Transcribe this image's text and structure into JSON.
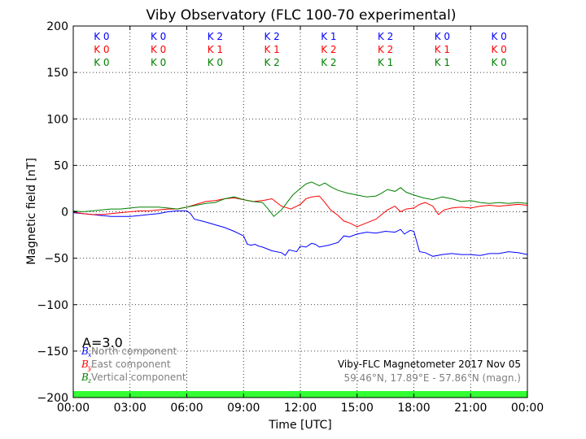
{
  "chart_data": {
    "type": "line",
    "title": "Viby Observatory (FLC 100-70 experimental)",
    "xlabel": "Time [UTC]",
    "ylabel": "Magnetic field [nT]",
    "xlim": [
      0,
      24
    ],
    "ylim": [
      -200,
      200
    ],
    "grid": true,
    "x_ticks": [
      0,
      3,
      6,
      9,
      12,
      15,
      18,
      21,
      24
    ],
    "x_tick_labels": [
      "00:00",
      "03:00",
      "06:00",
      "09:00",
      "12:00",
      "15:00",
      "18:00",
      "21:00",
      "00:00"
    ],
    "y_ticks": [
      -200,
      -150,
      -100,
      -50,
      0,
      50,
      100,
      150,
      200
    ],
    "y_tick_labels": [
      "−200",
      "−150",
      "−100",
      "−50",
      "0",
      "50",
      "100",
      "150",
      "200"
    ],
    "k_indices": {
      "x_centers": [
        1.5,
        4.5,
        7.5,
        10.5,
        13.5,
        16.5,
        19.5,
        22.5
      ],
      "rows": [
        {
          "color": "#0000ff",
          "values": [
            "K 0",
            "K 0",
            "K 2",
            "K 2",
            "K 1",
            "K 2",
            "K 0",
            "K 0"
          ]
        },
        {
          "color": "#ff0000",
          "values": [
            "K 0",
            "K 0",
            "K 1",
            "K 1",
            "K 2",
            "K 2",
            "K 1",
            "K 0"
          ]
        },
        {
          "color": "#008000",
          "values": [
            "K 0",
            "K 0",
            "K 0",
            "K 2",
            "K 2",
            "K 1",
            "K 1",
            "K 0"
          ]
        }
      ]
    },
    "activity_band": {
      "y_from": -200,
      "y_to": -193,
      "color": "#33ff33"
    },
    "series": [
      {
        "key": "north",
        "color": "#0000ff",
        "x": [
          0,
          0.5,
          1,
          1.5,
          2,
          2.5,
          3,
          3.5,
          4,
          4.5,
          5,
          5.5,
          6,
          6.2,
          6.4,
          6.8,
          7,
          7.5,
          8,
          8.5,
          9,
          9.2,
          9.4,
          9.6,
          9.8,
          10,
          10.5,
          11,
          11.2,
          11.4,
          11.8,
          12,
          12.3,
          12.6,
          12.8,
          13,
          13.5,
          14,
          14.3,
          14.6,
          15,
          15.5,
          16,
          16.5,
          17,
          17.3,
          17.5,
          17.8,
          18,
          18.3,
          18.6,
          19,
          19.5,
          20,
          20.5,
          21,
          21.5,
          22,
          22.5,
          23,
          23.5,
          24
        ],
        "y": [
          -1,
          -2,
          -3,
          -4,
          -5,
          -5,
          -5,
          -4,
          -3,
          -2,
          0,
          1,
          1,
          -2,
          -8,
          -10,
          -11,
          -14,
          -17,
          -21,
          -26,
          -35,
          -36,
          -35,
          -37,
          -38,
          -42,
          -44,
          -47,
          -41,
          -43,
          -37,
          -38,
          -34,
          -35,
          -38,
          -36,
          -33,
          -26,
          -27,
          -24,
          -22,
          -23,
          -21,
          -22,
          -19,
          -24,
          -20,
          -21,
          -43,
          -44,
          -48,
          -46,
          -45,
          -46,
          -46,
          -47,
          -45,
          -45,
          -43,
          -44,
          -46
        ]
      },
      {
        "key": "east",
        "color": "#ff0000",
        "x": [
          0,
          0.5,
          1,
          1.5,
          2,
          2.5,
          3,
          3.5,
          4,
          4.5,
          5,
          5.5,
          6,
          6.5,
          7,
          7.5,
          8,
          8.5,
          9,
          9.5,
          10,
          10.5,
          11,
          11.5,
          12,
          12.3,
          12.6,
          13,
          13.3,
          13.6,
          14,
          14.3,
          14.6,
          15,
          15.5,
          16,
          16.3,
          16.6,
          17,
          17.3,
          17.6,
          18,
          18.3,
          18.6,
          19,
          19.3,
          19.6,
          20,
          20.5,
          21,
          21.5,
          22,
          22.5,
          23,
          23.5,
          24
        ],
        "y": [
          0,
          -2,
          -3,
          -3,
          -2,
          -1,
          0,
          1,
          1,
          2,
          3,
          3,
          5,
          8,
          11,
          12,
          14,
          15,
          13,
          11,
          12,
          14,
          6,
          3,
          8,
          14,
          16,
          17,
          10,
          2,
          -4,
          -10,
          -12,
          -16,
          -12,
          -8,
          -3,
          2,
          6,
          0,
          3,
          4,
          8,
          10,
          6,
          -3,
          2,
          4,
          5,
          4,
          6,
          7,
          6,
          7,
          8,
          7
        ]
      },
      {
        "key": "vertical",
        "color": "#008000",
        "x": [
          0,
          0.5,
          1,
          1.5,
          2,
          2.5,
          3,
          3.5,
          4,
          4.5,
          5,
          5.5,
          6,
          6.5,
          7,
          7.5,
          8,
          8.5,
          9,
          9.5,
          10,
          10.3,
          10.6,
          11,
          11.3,
          11.6,
          12,
          12.3,
          12.6,
          13,
          13.3,
          13.6,
          14,
          14.5,
          15,
          15.5,
          16,
          16.3,
          16.6,
          17,
          17.3,
          17.6,
          18,
          18.5,
          19,
          19.5,
          20,
          20.5,
          21,
          21.5,
          22,
          22.5,
          23,
          23.5,
          24
        ],
        "y": [
          1,
          0,
          1,
          2,
          3,
          3,
          4,
          5,
          5,
          5,
          4,
          3,
          5,
          7,
          9,
          10,
          14,
          16,
          13,
          11,
          10,
          3,
          -5,
          2,
          10,
          18,
          25,
          30,
          32,
          28,
          31,
          27,
          23,
          20,
          18,
          16,
          17,
          20,
          24,
          22,
          26,
          21,
          18,
          15,
          13,
          16,
          14,
          11,
          12,
          10,
          9,
          10,
          9,
          10,
          9
        ]
      }
    ],
    "annotations": {
      "a_index": "A=3.0",
      "legend": [
        {
          "symbol": "B",
          "sub": "x",
          "text": " North component",
          "color": "#0000ff"
        },
        {
          "symbol": "B",
          "sub": "y",
          "text": " East component",
          "color": "#ff0000"
        },
        {
          "symbol": "B",
          "sub": "z",
          "text": " Vertical component",
          "color": "#008000"
        }
      ],
      "info_line1": "Viby-FLC Magnetometer 2017 Nov 05",
      "info_line2": "59.46°N, 17.89°E - 57.86°N (magn.)"
    }
  }
}
